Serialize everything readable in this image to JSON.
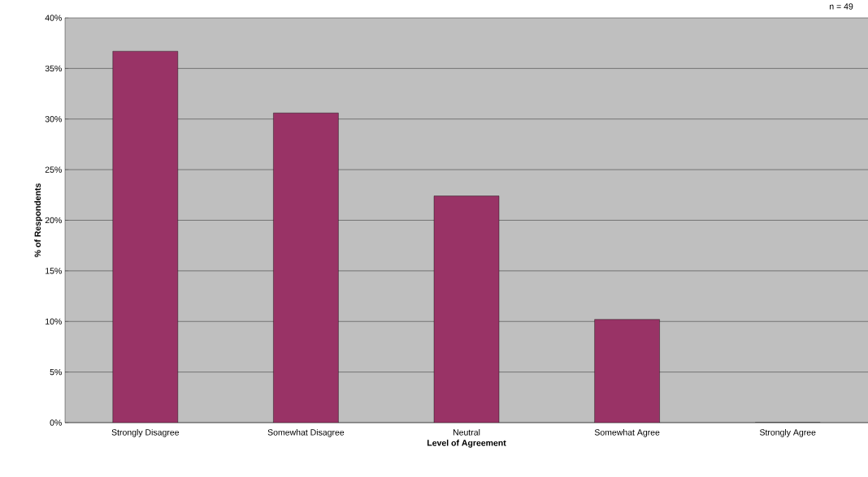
{
  "chart_data": {
    "type": "bar",
    "xlabel": "Level of Agreement",
    "ylabel": "% of Respondents",
    "annotations": [
      "n = 49"
    ],
    "categories": [
      "Strongly Disagree",
      "Somewhat Disagree",
      "Neutral",
      "Somewhat Agree",
      "Strongly Agree"
    ],
    "values": [
      36.7,
      30.6,
      22.4,
      10.2,
      0
    ],
    "color": "#993366",
    "ylim": [
      0,
      40
    ],
    "yticks": [
      {
        "value": 0,
        "label": "0%"
      },
      {
        "value": 5,
        "label": "5%"
      },
      {
        "value": 10,
        "label": "10%"
      },
      {
        "value": 15,
        "label": "15%"
      },
      {
        "value": 20,
        "label": "20%"
      },
      {
        "value": 25,
        "label": "25%"
      },
      {
        "value": 30,
        "label": "30%"
      },
      {
        "value": 35,
        "label": "35%"
      },
      {
        "value": 40,
        "label": "40%"
      }
    ],
    "grid": "y"
  }
}
